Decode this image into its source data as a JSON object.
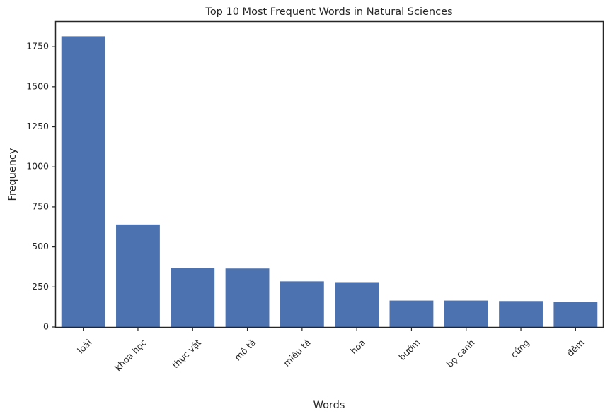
{
  "chart_data": {
    "type": "bar",
    "title": "Top 10 Most Frequent Words in Natural Sciences",
    "xlabel": "Words",
    "ylabel": "Frequency",
    "categories": [
      "loài",
      "khoa học",
      "thực vật",
      "mô tả",
      "miêu tả",
      "hoa",
      "bướm",
      "bọ cánh",
      "cứng",
      "đêm"
    ],
    "values": [
      1815,
      640,
      368,
      365,
      285,
      280,
      165,
      165,
      162,
      158
    ],
    "ylim": [
      0,
      1905
    ],
    "yticks": [
      0,
      250,
      500,
      750,
      1000,
      1250,
      1500,
      1750
    ],
    "grid": false,
    "bar_color": "#4c72b0"
  }
}
